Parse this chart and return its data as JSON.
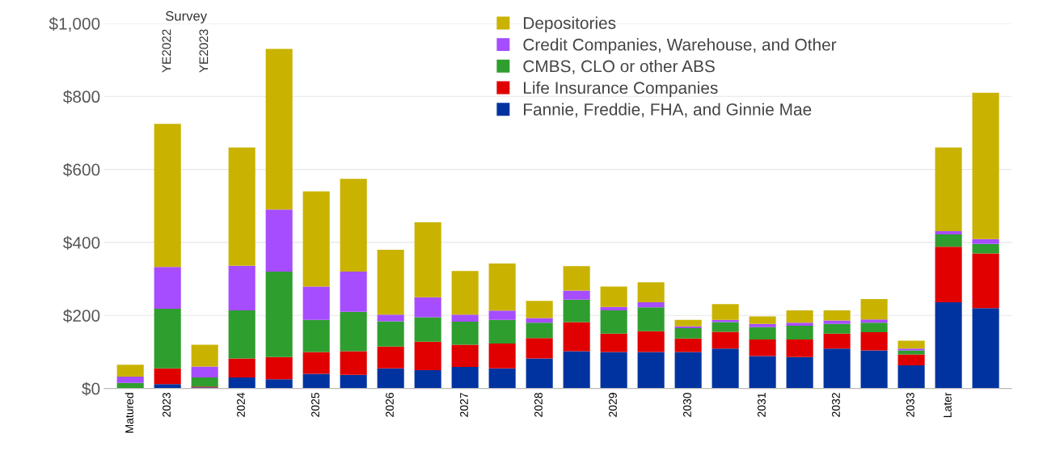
{
  "chart_data": {
    "type": "bar",
    "stacked": true,
    "categories": [
      "Matured",
      "2023",
      null,
      "2024",
      null,
      "2025",
      null,
      "2026",
      null,
      "2027",
      null,
      "2028",
      null,
      "2029",
      null,
      "2030",
      null,
      "2031",
      null,
      "2032",
      null,
      "2033",
      "Later",
      null
    ],
    "series": [
      {
        "name": "Fannie, Freddie, FHA, and Ginnie Mae",
        "color": "#0033a0",
        "values": [
          0,
          12,
          3,
          30,
          25,
          40,
          37,
          55,
          50,
          59,
          55,
          82,
          102,
          100,
          100,
          100,
          109,
          89,
          86,
          109,
          104,
          63,
          236,
          220
        ]
      },
      {
        "name": "Life Insurance Companies",
        "color": "#e00000",
        "values": [
          0,
          43,
          2,
          52,
          61,
          60,
          65,
          60,
          78,
          61,
          68,
          56,
          80,
          50,
          57,
          37,
          46,
          45,
          48,
          41,
          50,
          30,
          152,
          150
        ]
      },
      {
        "name": "CMBS, CLO or other ABS",
        "color": "#2e9e2e",
        "values": [
          15,
          163,
          25,
          132,
          234,
          88,
          108,
          69,
          67,
          63,
          65,
          42,
          61,
          64,
          65,
          28,
          27,
          34,
          38,
          27,
          26,
          11,
          34,
          26
        ]
      },
      {
        "name": "Credit Companies, Warehouse, and Other",
        "color": "#a64dff",
        "values": [
          17,
          115,
          30,
          122,
          170,
          91,
          110,
          18,
          55,
          19,
          25,
          13,
          25,
          9,
          14,
          5,
          6,
          9,
          8,
          9,
          9,
          5,
          9,
          13
        ]
      },
      {
        "name": "Depositories",
        "color": "#c9b300",
        "values": [
          33,
          392,
          60,
          324,
          440,
          261,
          254,
          178,
          205,
          120,
          129,
          47,
          67,
          56,
          55,
          18,
          43,
          20,
          34,
          28,
          56,
          22,
          229,
          401
        ]
      }
    ],
    "ylim": [
      0,
      1000
    ],
    "yticks": [
      {
        "value": 0,
        "label": "$0"
      },
      {
        "value": 200,
        "label": "$200"
      },
      {
        "value": 400,
        "label": "$400"
      },
      {
        "value": 600,
        "label": "$600"
      },
      {
        "value": 800,
        "label": "$800"
      },
      {
        "value": 1000,
        "label": "$1,000"
      }
    ],
    "grid": "y",
    "legend": "top",
    "annotations": [
      "Survey",
      "YE2022",
      "YE2023"
    ]
  }
}
